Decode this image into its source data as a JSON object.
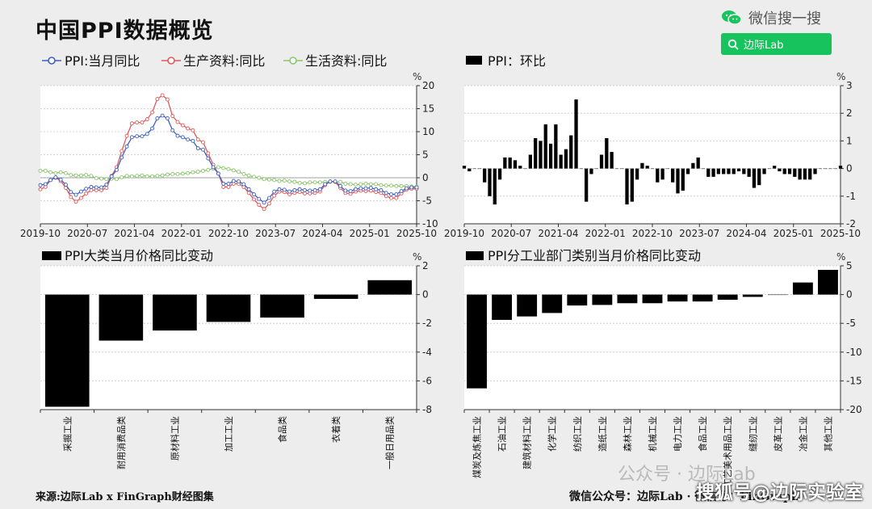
{
  "page": {
    "title": "中国PPI数据概览",
    "wechat_label": "微信搜一搜",
    "search_label": "边际Lab",
    "source": "来源:边际Lab x FinGraph财经图集",
    "footer_right": "微信公众号：边际Lab · 微信号：FinGraph",
    "watermark": "公众号 · 边际Lab",
    "watermark2": "搜狐号@边际实验室"
  },
  "colors": {
    "blue": "#3f5fbf",
    "red": "#e05a5a",
    "green": "#8cc66c",
    "bar": "#000000"
  },
  "chart_data": [
    {
      "type": "line",
      "legend": [
        "PPI:当月同比",
        "生产资料:同比",
        "生活资料:同比"
      ],
      "unit": "%",
      "ylim": [
        -10,
        20
      ],
      "yticks": [
        -10,
        -5,
        0,
        5,
        10,
        15,
        20
      ],
      "xticks": [
        "2019-10",
        "2020-07",
        "2021-04",
        "2022-01",
        "2022-10",
        "2023-07",
        "2024-04",
        "2025-01",
        "2025-10"
      ],
      "series": [
        {
          "name": "PPI:当月同比",
          "color": "blue",
          "values": [
            -1.6,
            -1.4,
            -0.5,
            0.1,
            -0.4,
            -1.5,
            -3.1,
            -3.7,
            -3.0,
            -2.4,
            -2.0,
            -2.1,
            -2.1,
            -1.5,
            0.3,
            1.7,
            4.4,
            6.8,
            8.8,
            9.0,
            9.0,
            9.5,
            10.7,
            12.9,
            13.5,
            12.9,
            10.3,
            9.1,
            8.8,
            8.3,
            8.0,
            6.4,
            6.1,
            4.2,
            2.3,
            0.9,
            -1.3,
            -1.3,
            -0.7,
            -0.8,
            -1.4,
            -2.5,
            -3.6,
            -4.6,
            -5.4,
            -4.4,
            -3.0,
            -2.5,
            -2.6,
            -3.0,
            -2.7,
            -2.5,
            -2.7,
            -2.8,
            -2.7,
            -2.5,
            -1.4,
            -0.8,
            -0.8,
            -1.8,
            -2.8,
            -2.9,
            -2.5,
            -2.3,
            -2.3,
            -2.2,
            -2.5,
            -2.7,
            -3.3,
            -3.6,
            -3.6,
            -2.9,
            -2.3,
            -2.1,
            -2.1
          ]
        },
        {
          "name": "生产资料:同比",
          "color": "red",
          "values": [
            -2.5,
            -2.0,
            -0.5,
            0.0,
            -0.7,
            -2.2,
            -4.2,
            -5.2,
            -4.4,
            -3.4,
            -2.7,
            -2.7,
            -2.7,
            -2.2,
            0.4,
            2.3,
            5.8,
            9.1,
            11.8,
            12.0,
            12.0,
            12.7,
            14.2,
            17.1,
            17.9,
            17.0,
            13.4,
            12.1,
            11.4,
            10.7,
            10.3,
            8.3,
            7.7,
            5.3,
            2.8,
            0.9,
            -2.0,
            -2.0,
            -1.3,
            -1.3,
            -2.0,
            -3.3,
            -4.7,
            -5.9,
            -6.8,
            -5.6,
            -3.9,
            -3.0,
            -3.1,
            -3.6,
            -3.3,
            -3.1,
            -3.4,
            -3.4,
            -3.3,
            -3.0,
            -1.6,
            -0.8,
            -0.9,
            -2.2,
            -3.3,
            -3.5,
            -3.0,
            -2.8,
            -2.9,
            -2.8,
            -3.1,
            -3.3,
            -4.0,
            -4.4,
            -4.4,
            -3.4,
            -2.6,
            -2.4,
            -2.4
          ]
        },
        {
          "name": "生活资料:同比",
          "color": "green",
          "values": [
            1.5,
            1.5,
            1.2,
            1.0,
            1.2,
            1.0,
            0.6,
            0.5,
            0.5,
            0.6,
            0.4,
            -0.1,
            -0.2,
            -0.3,
            -0.2,
            -0.3,
            0.1,
            0.4,
            0.3,
            0.4,
            0.5,
            0.3,
            0.3,
            0.4,
            0.5,
            0.7,
            0.8,
            0.8,
            0.9,
            1.0,
            1.2,
            1.3,
            1.5,
            1.7,
            2.0,
            2.3,
            2.1,
            1.9,
            1.6,
            1.3,
            0.8,
            0.5,
            0.2,
            0.0,
            -0.3,
            -0.4,
            -0.5,
            -0.7,
            -0.6,
            -0.8,
            -0.9,
            -1.1,
            -1.2,
            -1.0,
            -1.0,
            -1.0,
            -0.9,
            -0.9,
            -0.9,
            -0.9,
            -1.3,
            -1.4,
            -1.5,
            -1.4,
            -1.3,
            -1.4,
            -1.4,
            -1.6,
            -1.7,
            -1.7,
            -1.8,
            -1.8,
            -1.8,
            -1.9,
            -1.9
          ]
        }
      ]
    },
    {
      "type": "bar",
      "legend": [
        "PPI：环比"
      ],
      "unit": "%",
      "ylim": [
        -2,
        3
      ],
      "yticks": [
        -2,
        -1,
        0,
        1,
        2,
        3
      ],
      "xticks": [
        "2019-10",
        "2020-07",
        "2021-04",
        "2022-01",
        "2022-10",
        "2023-07",
        "2024-04",
        "2025-01",
        "2025-10"
      ],
      "values": [
        0.1,
        -0.1,
        0.0,
        0.0,
        -0.5,
        -1.0,
        -1.3,
        -0.4,
        0.4,
        0.4,
        0.3,
        0.1,
        0.0,
        0.5,
        1.1,
        1.0,
        1.6,
        0.9,
        1.6,
        0.5,
        0.7,
        1.2,
        2.5,
        0.0,
        -1.2,
        -0.2,
        0.0,
        0.5,
        1.1,
        0.6,
        0.0,
        0.0,
        -1.3,
        -1.2,
        -0.4,
        0.2,
        0.1,
        0.0,
        -0.5,
        -0.4,
        0.0,
        -0.5,
        -0.9,
        -0.8,
        -0.2,
        0.2,
        0.4,
        0.0,
        -0.3,
        -0.3,
        -0.2,
        -0.2,
        -0.2,
        -0.2,
        -0.1,
        -0.2,
        -0.3,
        -0.7,
        -0.6,
        -0.2,
        0.0,
        0.1,
        -0.1,
        -0.2,
        -0.2,
        -0.3,
        -0.4,
        -0.4,
        -0.4,
        -0.2,
        0.0,
        0.0,
        0.0,
        0.0,
        0.1
      ]
    },
    {
      "type": "bar",
      "legend": [
        "PPI大类当月价格同比变动"
      ],
      "unit": "%",
      "ylim": [
        -8,
        2
      ],
      "yticks": [
        -8,
        -6,
        -4,
        -2,
        0,
        2
      ],
      "categories": [
        "采掘工业",
        "耐用消费品类",
        "原材料工业",
        "加工工业",
        "食品类",
        "衣着类",
        "一般日用品类"
      ],
      "values": [
        -7.8,
        -3.2,
        -2.5,
        -1.9,
        -1.6,
        -0.3,
        1.0
      ]
    },
    {
      "type": "bar",
      "legend": [
        "PPI分工业部门类别当月价格同比变动"
      ],
      "unit": "%",
      "ylim": [
        -20,
        5
      ],
      "yticks": [
        -20,
        -15,
        -10,
        -5,
        0,
        5
      ],
      "categories": [
        "煤炭及炼焦工业",
        "石油工业",
        "建筑材料工业",
        "化学工业",
        "纺织工业",
        "造纸工业",
        "森林工业",
        "机械工业",
        "电力工业",
        "食品工业",
        "工艺美术用品工业",
        "缝纫工业",
        "皮革工业",
        "冶金工业",
        "其他工业"
      ],
      "values": [
        -16.3,
        -4.4,
        -3.8,
        -3.2,
        -1.9,
        -1.8,
        -1.5,
        -1.5,
        -1.2,
        -1.2,
        -0.9,
        -0.4,
        0.0,
        2.1,
        4.3
      ]
    }
  ]
}
